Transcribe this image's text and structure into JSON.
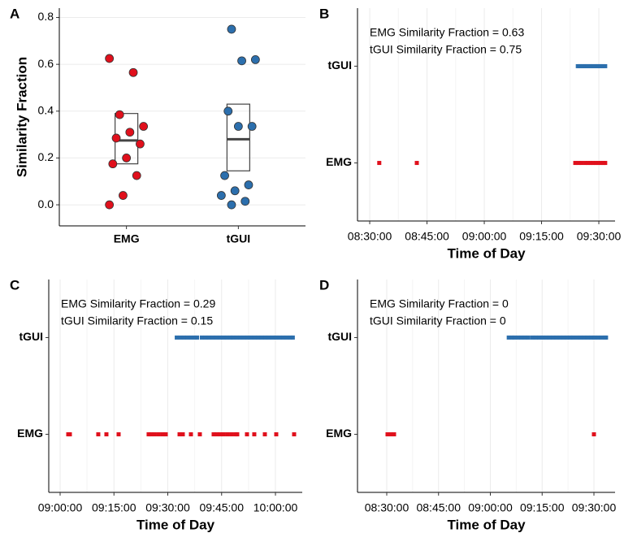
{
  "chart_data": [
    {
      "type": "strip_box",
      "panel_label": "A",
      "ylabel": "Similarity Fraction",
      "categories": [
        "EMG",
        "tGUI"
      ],
      "groups": [
        {
          "color": "#e0101c",
          "values": [
            0.625,
            0.565,
            0.385,
            0.335,
            0.31,
            0.285,
            0.26,
            0.2,
            0.175,
            0.125,
            0.04,
            0.0
          ],
          "q1": 0.175,
          "median": 0.275,
          "q3": 0.39
        },
        {
          "color": "#2c6fad",
          "values": [
            0.75,
            0.62,
            0.615,
            0.4,
            0.335,
            0.335,
            0.125,
            0.085,
            0.06,
            0.04,
            0.015,
            0.0
          ],
          "q1": 0.145,
          "median": 0.28,
          "q3": 0.43
        }
      ],
      "ylim": [
        -0.09,
        0.84
      ],
      "yticks": [
        {
          "value": 0,
          "label": "0.0"
        },
        {
          "value": 0.2,
          "label": "0.2"
        },
        {
          "value": 0.4,
          "label": "0.4"
        },
        {
          "value": 0.6,
          "label": "0.6"
        },
        {
          "value": 0.8,
          "label": "0.8"
        }
      ],
      "grid": true
    },
    {
      "type": "timeline",
      "panel_label": "B",
      "xlabel": "Time of Day",
      "annotations": [
        "EMG Similarity Fraction = 0.63",
        "tGUI Similarity Fraction = 0.75"
      ],
      "categories": [
        "EMG",
        "tGUI"
      ],
      "series": [
        {
          "color": "#e0101c",
          "x": [
            "08:32:30",
            "08:42:20",
            "09:23:50",
            "09:24:40",
            "09:25:30",
            "09:26:30",
            "09:27:10",
            "09:27:50",
            "09:28:30",
            "09:29:10",
            "09:29:50",
            "09:30:30",
            "09:31:10",
            "09:31:40"
          ]
        },
        {
          "color": "#2c6fad",
          "x": [
            "09:24:30",
            "09:25:00",
            "09:25:30",
            "09:26:00",
            "09:26:30",
            "09:27:00",
            "09:27:30",
            "09:28:00",
            "09:28:30",
            "09:29:00",
            "09:29:30",
            "09:30:00",
            "09:30:30",
            "09:31:00",
            "09:31:40"
          ]
        }
      ],
      "xlim": [
        "08:26:48",
        "09:34:15"
      ],
      "xticks": [
        "08:30:00",
        "08:45:00",
        "09:00:00",
        "09:15:00",
        "09:30:00"
      ],
      "grid": true
    },
    {
      "type": "timeline",
      "panel_label": "C",
      "xlabel": "Time of Day",
      "annotations": [
        "EMG Similarity Fraction = 0.29",
        "tGUI Similarity Fraction = 0.15"
      ],
      "categories": [
        "EMG",
        "tGUI"
      ],
      "series": [
        {
          "color": "#e0101c",
          "x": [
            "09:02:16",
            "09:02:43",
            "09:10:38",
            "09:12:54",
            "09:16:18",
            "09:24:40",
            "09:25:21",
            "09:26:16",
            "09:27:24",
            "09:28:32",
            "09:29:26",
            "09:33:17",
            "09:34:11",
            "09:36:27",
            "09:38:56",
            "09:42:47",
            "09:43:41",
            "09:44:36",
            "09:45:30",
            "09:46:38",
            "09:47:46",
            "09:48:54",
            "09:49:21",
            "09:52:04",
            "09:54:06",
            "09:57:03",
            "10:00:13",
            "10:05:12"
          ]
        },
        {
          "color": "#2c6fad",
          "x": [
            "09:32:30",
            "09:33:30",
            "09:34:30",
            "09:35:30",
            "09:36:30",
            "09:37:30",
            "09:38:10",
            "09:39:30",
            "09:40:30",
            "09:41:30",
            "09:42:30",
            "09:43:30",
            "09:44:30",
            "09:45:30",
            "09:46:30",
            "09:47:30",
            "09:48:10",
            "09:49:10",
            "09:50:10",
            "09:51:10",
            "09:52:10",
            "09:53:10",
            "09:54:10",
            "09:55:10",
            "09:56:10",
            "09:57:10",
            "09:58:10",
            "09:59:10",
            "10:00:10",
            "10:01:10",
            "10:02:10",
            "10:03:10",
            "10:04:10",
            "10:04:50"
          ]
        }
      ],
      "xlim": [
        "08:56:50",
        "10:07:28"
      ],
      "xticks": [
        "09:00:00",
        "09:15:00",
        "09:30:00",
        "09:45:00",
        "10:00:00"
      ],
      "grid": true
    },
    {
      "type": "timeline",
      "panel_label": "D",
      "xlabel": "Time of Day",
      "annotations": [
        "EMG Similarity Fraction = 0",
        "tGUI Similarity Fraction = 0"
      ],
      "categories": [
        "EMG",
        "tGUI"
      ],
      "series": [
        {
          "color": "#e0101c",
          "x": [
            "08:30:14",
            "08:31:11",
            "08:32:07",
            "09:30:00"
          ]
        },
        {
          "color": "#2c6fad",
          "x": [
            "09:05:20",
            "09:06:20",
            "09:06:55",
            "09:08:00",
            "09:09:00",
            "09:10:00",
            "09:11:00",
            "09:12:10",
            "09:13:10",
            "09:14:10",
            "09:15:10",
            "09:16:10",
            "09:17:10",
            "09:18:10",
            "09:19:10",
            "09:20:10",
            "09:21:10",
            "09:22:10",
            "09:23:10",
            "09:24:00",
            "09:25:10",
            "09:26:10",
            "09:27:10",
            "09:28:10",
            "09:29:10",
            "09:30:10",
            "09:31:10",
            "09:32:10",
            "09:33:10",
            "09:33:30"
          ]
        }
      ],
      "xlim": [
        "08:21:32",
        "09:36:07"
      ],
      "xticks": [
        "08:30:00",
        "08:45:00",
        "09:00:00",
        "09:15:00",
        "09:30:00"
      ],
      "grid": true
    }
  ]
}
